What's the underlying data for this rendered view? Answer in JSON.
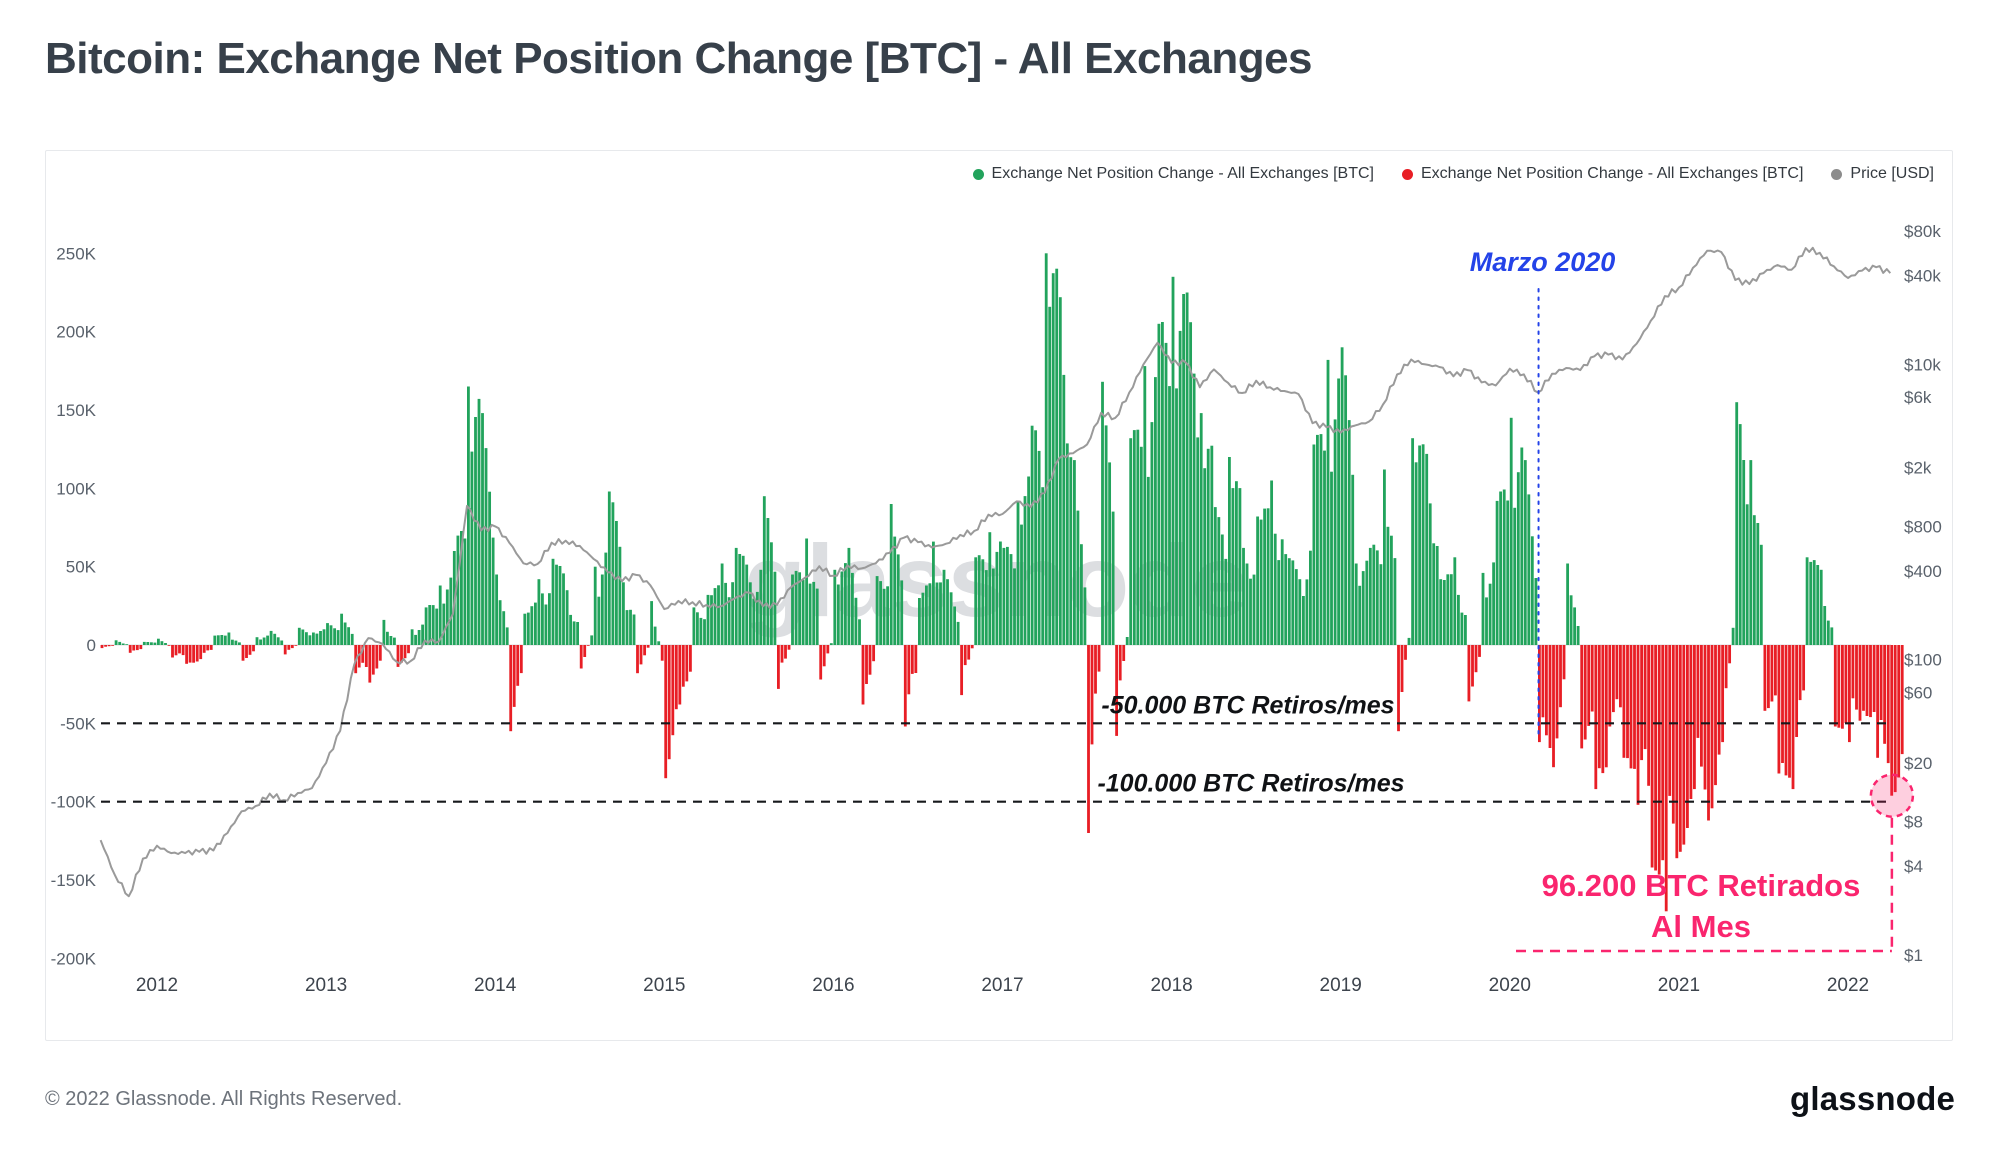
{
  "title": "Bitcoin: Exchange Net Position Change [BTC] - All Exchanges",
  "legend": [
    {
      "label": "Exchange Net Position Change - All Exchanges [BTC]",
      "color": "#22a35c"
    },
    {
      "label": "Exchange Net Position Change - All Exchanges [BTC]",
      "color": "#e81e25"
    },
    {
      "label": "Price [USD]",
      "color": "#8c8c8c"
    }
  ],
  "watermark": "glassnode",
  "annotations": {
    "marzo": {
      "text": "Marzo 2020",
      "color": "#2443e8",
      "x_year": 2020.17
    },
    "line50": {
      "text": "-50.000 BTC Retiros/mes",
      "value_k": -50
    },
    "line100": {
      "text": "-100.000 BTC Retiros/mes",
      "value_k": -100
    },
    "callout": {
      "line1": "96.200 BTC Retirados",
      "line2": "Al Mes",
      "color": "#fa256e",
      "value_k": -96.2
    }
  },
  "footer": {
    "copyright": "© 2022 Glassnode. All Rights Reserved.",
    "brand": "glassnode"
  },
  "chart_data": {
    "type": "bar",
    "title": "Bitcoin: Exchange Net Position Change [BTC] - All Exchanges",
    "x": {
      "start_year": 2011.6667,
      "interval_years": 0.0833333,
      "points": 128,
      "ticks": [
        2012,
        2013,
        2014,
        2015,
        2016,
        2017,
        2018,
        2019,
        2020,
        2021,
        2022
      ]
    },
    "series": [
      {
        "name": "Exchange Net Position Change - All Exchanges [BTC]",
        "type": "bar",
        "unit": "thousand BTC per month",
        "values": [
          -2,
          3,
          -5,
          2,
          4,
          -8,
          -12,
          -9,
          6,
          8,
          -10,
          5,
          9,
          -6,
          11,
          8,
          14,
          20,
          -18,
          -24,
          16,
          -14,
          10,
          24,
          38,
          60,
          165,
          148,
          45,
          -55,
          20,
          42,
          55,
          35,
          -15,
          50,
          98,
          40,
          -18,
          28,
          -85,
          -38,
          24,
          32,
          52,
          62,
          40,
          95,
          -28,
          45,
          68,
          -22,
          48,
          62,
          -38,
          44,
          90,
          -52,
          30,
          66,
          42,
          -32,
          56,
          72,
          62,
          92,
          140,
          250,
          222,
          118,
          -120,
          168,
          -58,
          132,
          178,
          205,
          235,
          225,
          148,
          88,
          120,
          62,
          82,
          105,
          58,
          42,
          128,
          182,
          190,
          52,
          62,
          112,
          -55,
          132,
          122,
          42,
          56,
          -36,
          46,
          92,
          145,
          118,
          -62,
          -78,
          52,
          -66,
          -92,
          -52,
          -72,
          -102,
          -142,
          -170,
          -132,
          -92,
          -112,
          -62,
          155,
          118,
          -42,
          -82,
          -92,
          56,
          48,
          -52,
          -62,
          -42,
          -72,
          -96.2
        ]
      },
      {
        "name": "Price [USD]",
        "type": "line",
        "axis": "right",
        "scale": "log",
        "values": [
          6,
          3.5,
          2.5,
          4.5,
          5.5,
          4.9,
          4.9,
          5,
          5.1,
          6.7,
          9.4,
          10.2,
          12.4,
          11.2,
          12.5,
          13.5,
          20,
          33,
          93,
          140,
          128,
          97,
          98,
          135,
          133,
          204,
          1100,
          750,
          800,
          620,
          450,
          445,
          620,
          640,
          590,
          480,
          390,
          340,
          375,
          320,
          220,
          250,
          245,
          235,
          230,
          260,
          285,
          230,
          235,
          310,
          360,
          430,
          370,
          435,
          415,
          450,
          530,
          670,
          625,
          575,
          610,
          700,
          745,
          960,
          970,
          1180,
          1080,
          1350,
          2300,
          2500,
          2870,
          4700,
          4340,
          6450,
          10000,
          14000,
          10200,
          10300,
          7000,
          9250,
          7500,
          6400,
          7750,
          7000,
          6600,
          6300,
          4000,
          3750,
          3450,
          3850,
          4100,
          5350,
          8550,
          10800,
          10000,
          9600,
          8300,
          9150,
          7550,
          7200,
          9350,
          8550,
          6450,
          8650,
          9450,
          9150,
          11350,
          11650,
          10800,
          13800,
          19700,
          29000,
          33100,
          45200,
          58800,
          57750,
          37300,
          35000,
          41500,
          47100,
          43800,
          61300,
          57000,
          46200,
          38500,
          43200,
          45500,
          41500
        ]
      }
    ],
    "y_left": {
      "unit": "BTC (thousands)",
      "range": [
        -200,
        250
      ],
      "values": [
        250,
        200,
        150,
        100,
        50,
        0,
        -50,
        -100,
        -150,
        -200
      ],
      "labels": [
        "250K",
        "200K",
        "150K",
        "100K",
        "50K",
        "0",
        "-50K",
        "-100K",
        "-150K",
        "-200K"
      ]
    },
    "y_right": {
      "unit": "USD",
      "scale": "log",
      "range": [
        1,
        80000
      ],
      "values": [
        80000,
        40000,
        10000,
        6000,
        2000,
        800,
        400,
        100,
        60,
        20,
        8,
        4,
        1
      ],
      "labels": [
        "$80k",
        "$40k",
        "$10k",
        "$6k",
        "$2k",
        "$800",
        "$400",
        "$100",
        "$60",
        "$20",
        "$8",
        "$4",
        "$1"
      ]
    },
    "colors": {
      "positive": "#22a35c",
      "negative": "#e81e25",
      "price": "#9a9a9a"
    },
    "grid": "off",
    "legend_position": "top-right"
  }
}
